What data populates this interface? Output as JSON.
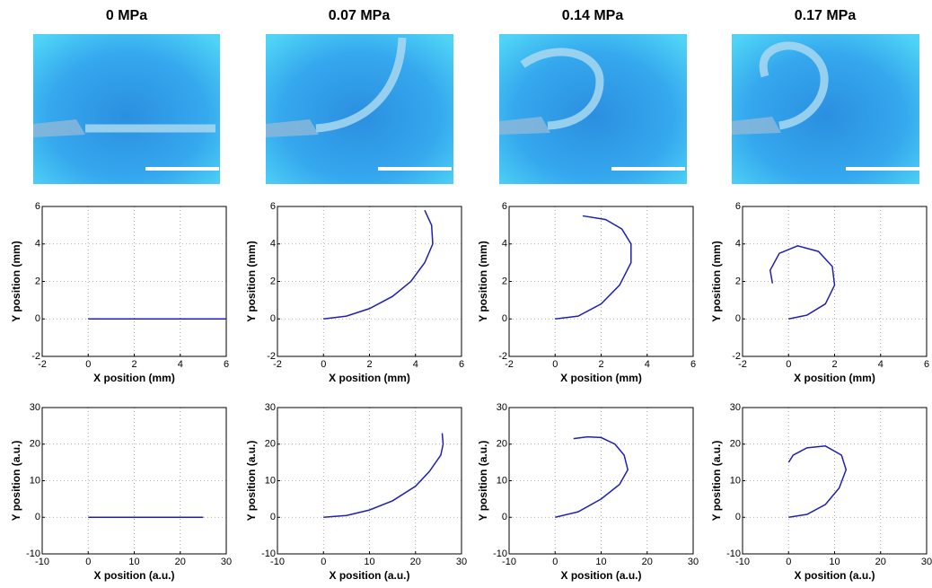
{
  "column_titles": [
    "0 MPa",
    "0.07 MPa",
    "0.14 MPa",
    "0.17 MPa"
  ],
  "chart_data": [
    {
      "type": "line",
      "xlabel": "X position (mm)",
      "ylabel": "Y position (mm)",
      "xlim": [
        -2,
        6
      ],
      "ylim": [
        -2,
        6
      ],
      "xticks": [
        -2,
        0,
        2,
        4,
        6
      ],
      "yticks": [
        -2,
        0,
        2,
        4,
        6
      ],
      "grid": true,
      "series": [
        {
          "color": "#1f1fb4",
          "x": [
            0,
            6
          ],
          "values": [
            0,
            0
          ]
        }
      ]
    },
    {
      "type": "line",
      "xlabel": "X position (mm)",
      "ylabel": "Y position (mm)",
      "xlim": [
        -2,
        6
      ],
      "ylim": [
        -2,
        6
      ],
      "xticks": [
        -2,
        0,
        2,
        4,
        6
      ],
      "yticks": [
        -2,
        0,
        2,
        4,
        6
      ],
      "grid": true,
      "series": [
        {
          "color": "#1f1fb4",
          "x": [
            0,
            1,
            2,
            3,
            3.8,
            4.4,
            4.75,
            4.7,
            4.4
          ],
          "values": [
            0,
            0.15,
            0.55,
            1.2,
            2,
            3,
            4,
            5,
            5.8
          ]
        }
      ]
    },
    {
      "type": "line",
      "xlabel": "X position (mm)",
      "ylabel": "Y position (mm)",
      "xlim": [
        -2,
        6
      ],
      "ylim": [
        -2,
        6
      ],
      "xticks": [
        -2,
        0,
        2,
        4,
        6
      ],
      "yticks": [
        -2,
        0,
        2,
        4,
        6
      ],
      "grid": true,
      "series": [
        {
          "color": "#1f1fb4",
          "x": [
            0,
            1,
            2,
            2.8,
            3.3,
            3.3,
            2.9,
            2.2,
            1.2
          ],
          "values": [
            0,
            0.15,
            0.8,
            1.8,
            3,
            4,
            4.8,
            5.3,
            5.5
          ]
        }
      ]
    },
    {
      "type": "line",
      "xlabel": "X position (mm)",
      "ylabel": "Y position (mm)",
      "xlim": [
        -2,
        6
      ],
      "ylim": [
        -2,
        6
      ],
      "xticks": [
        -2,
        0,
        2,
        4,
        6
      ],
      "yticks": [
        -2,
        0,
        2,
        4,
        6
      ],
      "grid": true,
      "series": [
        {
          "color": "#1f1fb4",
          "x": [
            0,
            0.8,
            1.6,
            2,
            1.9,
            1.3,
            0.4,
            -0.4,
            -0.8,
            -0.7
          ],
          "values": [
            0,
            0.2,
            0.8,
            1.8,
            2.8,
            3.6,
            3.9,
            3.5,
            2.6,
            1.9
          ]
        }
      ]
    },
    {
      "type": "line",
      "xlabel": "X position (a.u.)",
      "ylabel": "Y position (a.u.)",
      "xlim": [
        -10,
        30
      ],
      "ylim": [
        -10,
        30
      ],
      "xticks": [
        -10,
        0,
        10,
        20,
        30
      ],
      "yticks": [
        -10,
        0,
        10,
        20,
        30
      ],
      "grid": true,
      "series": [
        {
          "color": "#1f1fb4",
          "x": [
            0,
            25
          ],
          "values": [
            0,
            0
          ]
        }
      ]
    },
    {
      "type": "line",
      "xlabel": "X position (a.u.)",
      "ylabel": "Y position (a.u.)",
      "xlim": [
        -10,
        30
      ],
      "ylim": [
        -10,
        30
      ],
      "xticks": [
        -10,
        0,
        10,
        20,
        30
      ],
      "yticks": [
        -10,
        0,
        10,
        20,
        30
      ],
      "grid": true,
      "series": [
        {
          "color": "#1f1fb4",
          "x": [
            0,
            5,
            10,
            15,
            20,
            23,
            25.5,
            26,
            25.8
          ],
          "values": [
            0,
            0.5,
            2,
            4.5,
            8.5,
            12.5,
            17,
            20,
            23
          ]
        }
      ]
    },
    {
      "type": "line",
      "xlabel": "X position (a.u.)",
      "ylabel": "Y position (a.u.)",
      "xlim": [
        -10,
        30
      ],
      "ylim": [
        -10,
        30
      ],
      "xticks": [
        -10,
        0,
        10,
        20,
        30
      ],
      "yticks": [
        -10,
        0,
        10,
        20,
        30
      ],
      "grid": true,
      "series": [
        {
          "color": "#1f1fb4",
          "x": [
            0,
            5,
            10,
            14,
            15.8,
            15,
            13,
            10,
            7,
            4
          ],
          "values": [
            0,
            1.5,
            5,
            9,
            13,
            17,
            20,
            21.8,
            22,
            21.5
          ]
        }
      ]
    },
    {
      "type": "line",
      "xlabel": "X position (a.u.)",
      "ylabel": "Y position (a.u.)",
      "xlim": [
        -10,
        30
      ],
      "ylim": [
        -10,
        30
      ],
      "xticks": [
        -10,
        0,
        10,
        20,
        30
      ],
      "yticks": [
        -10,
        0,
        10,
        20,
        30
      ],
      "grid": true,
      "series": [
        {
          "color": "#1f1fb4",
          "x": [
            0,
            4,
            8,
            11,
            12.5,
            11.5,
            8,
            4,
            1,
            0
          ],
          "values": [
            0,
            0.8,
            3.5,
            8,
            13,
            17,
            19.5,
            19,
            17,
            15
          ]
        }
      ]
    }
  ]
}
